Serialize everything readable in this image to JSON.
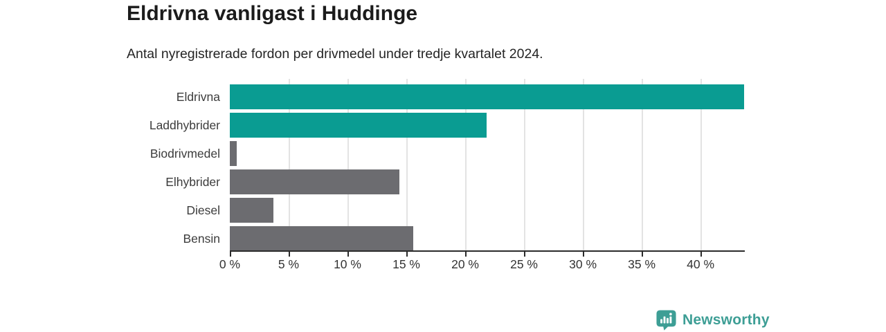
{
  "chart_data": {
    "type": "bar",
    "orientation": "horizontal",
    "title": "Eldrivna vanligast i Huddinge",
    "subtitle": "Antal nyregistrerade fordon per drivmedel under tredje kvartalet 2024.",
    "categories": [
      "Eldrivna",
      "Laddhybrider",
      "Biodrivmedel",
      "Elhybrider",
      "Diesel",
      "Bensin"
    ],
    "values": [
      43.7,
      21.8,
      0.6,
      14.4,
      3.7,
      15.6
    ],
    "unit": "%",
    "xlim": [
      0,
      43.7
    ],
    "x_tick_values": [
      0,
      5,
      10,
      15,
      20,
      25,
      30,
      35,
      40
    ],
    "x_tick_labels": [
      "0 %",
      "5 %",
      "10 %",
      "15 %",
      "20 %",
      "25 %",
      "30 %",
      "35 %",
      "40 %"
    ],
    "grid": true,
    "legend": "none",
    "bar_colors": [
      "#0a9c92",
      "#0a9c92",
      "#6c6c70",
      "#6c6c70",
      "#6c6c70",
      "#6c6c70"
    ]
  },
  "colors": {
    "teal": "#0a9c92",
    "gray": "#6c6c70",
    "axis": "#2b2b2b",
    "gridline": "#e3e3e3",
    "brand_teal": "#3d9e95",
    "background": "#ffffff"
  },
  "footer": {
    "brand": "Newsworthy"
  }
}
